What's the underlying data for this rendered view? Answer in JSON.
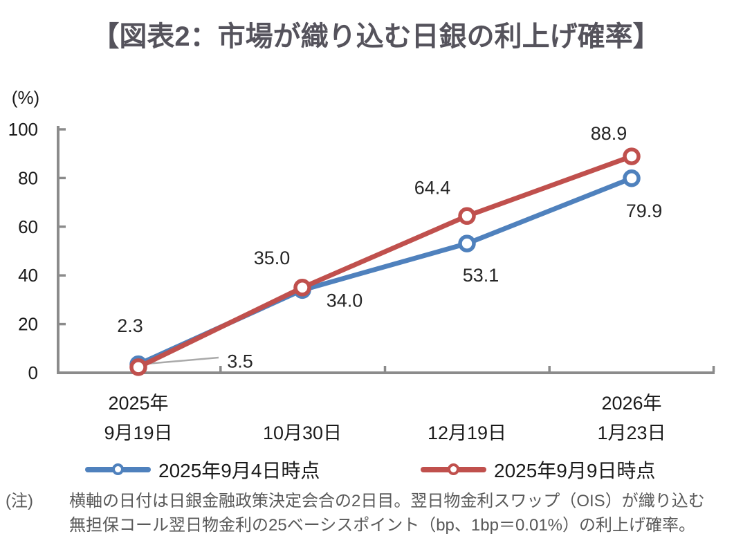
{
  "title": "【図表2：市場が織り込む日銀の利上げ確率】",
  "chart_data": {
    "type": "line",
    "title": "市場が織り込む日銀の利上げ確率",
    "unit_label": "(%)",
    "ylabel": "(%)",
    "xlabel": "",
    "ylim": [
      0,
      100
    ],
    "y_ticks": [
      0,
      20,
      40,
      60,
      80,
      100
    ],
    "grid": false,
    "legend_position": "bottom",
    "categories": [
      {
        "line1": "2025年",
        "line2": "9月19日"
      },
      {
        "line1": "",
        "line2": "10月30日"
      },
      {
        "line1": "",
        "line2": "12月19日"
      },
      {
        "line1": "2026年",
        "line2": "1月23日"
      }
    ],
    "series": [
      {
        "name": "2025年9月4日時点",
        "color": "#4F81BD",
        "values": [
          3.5,
          34.0,
          53.1,
          79.9
        ],
        "labels": [
          "3.5",
          "34.0",
          "53.1",
          "79.9"
        ]
      },
      {
        "name": "2025年9月9日時点",
        "color": "#C0504D",
        "values": [
          2.3,
          35.0,
          64.4,
          88.9
        ],
        "labels": [
          "2.3",
          "35.0",
          "64.4",
          "88.9"
        ]
      }
    ]
  },
  "footnote": {
    "marker": "(注)",
    "line1": "横軸の日付は日銀金融政策決定会合の2日目。翌日物金利スワップ（OIS）が織り込む",
    "line2": "無担保コール翌日物金利の25ベーシスポイント（bp、1bp＝0.01%）の利上げ確率。"
  },
  "colors": {
    "title": "#55535C",
    "axis": "#8B8B8B",
    "leader": "#A9A9A9",
    "tick_text": "#1a1a1a",
    "data_label_text": "#262626",
    "footnote_text": "#595959",
    "marker_fill": "#ffffff"
  }
}
